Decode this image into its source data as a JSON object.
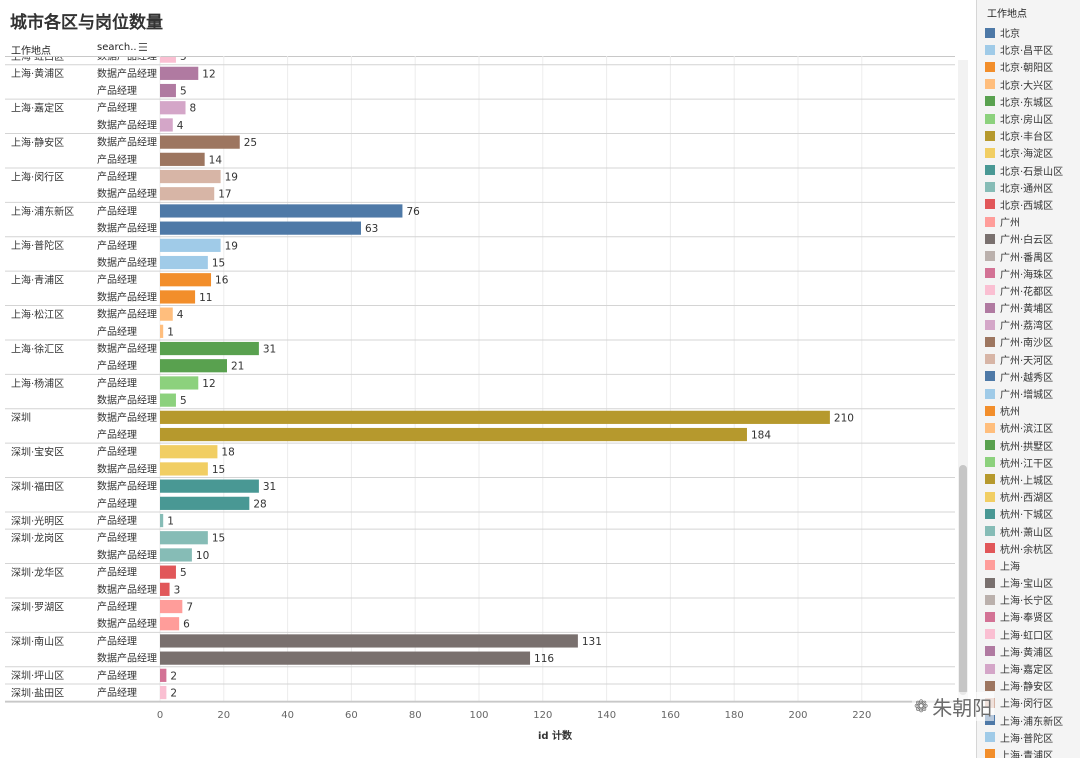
{
  "title": "城市各区与岗位数量",
  "header": {
    "location_label": "工作地点",
    "search_label": "search.."
  },
  "watermark": "朱朝阳",
  "legend": {
    "title": "工作地点",
    "items": [
      {
        "label": "北京",
        "color": "#4e79a7"
      },
      {
        "label": "北京·昌平区",
        "color": "#a0cbe8"
      },
      {
        "label": "北京·朝阳区",
        "color": "#f28e2b"
      },
      {
        "label": "北京·大兴区",
        "color": "#ffbe7d"
      },
      {
        "label": "北京·东城区",
        "color": "#59a14f"
      },
      {
        "label": "北京·房山区",
        "color": "#8cd17d"
      },
      {
        "label": "北京·丰台区",
        "color": "#b6992d"
      },
      {
        "label": "北京·海淀区",
        "color": "#f1ce63"
      },
      {
        "label": "北京·石景山区",
        "color": "#499894"
      },
      {
        "label": "北京·通州区",
        "color": "#86bcb6"
      },
      {
        "label": "北京·西城区",
        "color": "#e15759"
      },
      {
        "label": "广州",
        "color": "#ff9d9a"
      },
      {
        "label": "广州·白云区",
        "color": "#79706e"
      },
      {
        "label": "广州·番禺区",
        "color": "#bab0ac"
      },
      {
        "label": "广州·海珠区",
        "color": "#d37295"
      },
      {
        "label": "广州·花都区",
        "color": "#fabfd2"
      },
      {
        "label": "广州·黄埔区",
        "color": "#b07aa1"
      },
      {
        "label": "广州·荔湾区",
        "color": "#d4a6c8"
      },
      {
        "label": "广州·南沙区",
        "color": "#9d7660"
      },
      {
        "label": "广州·天河区",
        "color": "#d7b5a6"
      },
      {
        "label": "广州·越秀区",
        "color": "#4e79a7"
      },
      {
        "label": "广州·增城区",
        "color": "#a0cbe8"
      },
      {
        "label": "杭州",
        "color": "#f28e2b"
      },
      {
        "label": "杭州·滨江区",
        "color": "#ffbe7d"
      },
      {
        "label": "杭州·拱墅区",
        "color": "#59a14f"
      },
      {
        "label": "杭州·江干区",
        "color": "#8cd17d"
      },
      {
        "label": "杭州·上城区",
        "color": "#b6992d"
      },
      {
        "label": "杭州·西湖区",
        "color": "#f1ce63"
      },
      {
        "label": "杭州·下城区",
        "color": "#499894"
      },
      {
        "label": "杭州·萧山区",
        "color": "#86bcb6"
      },
      {
        "label": "杭州·余杭区",
        "color": "#e15759"
      },
      {
        "label": "上海",
        "color": "#ff9d9a"
      },
      {
        "label": "上海·宝山区",
        "color": "#79706e"
      },
      {
        "label": "上海·长宁区",
        "color": "#bab0ac"
      },
      {
        "label": "上海·奉贤区",
        "color": "#d37295"
      },
      {
        "label": "上海·虹口区",
        "color": "#fabfd2"
      },
      {
        "label": "上海·黄浦区",
        "color": "#b07aa1"
      },
      {
        "label": "上海·嘉定区",
        "color": "#d4a6c8"
      },
      {
        "label": "上海·静安区",
        "color": "#9d7660"
      },
      {
        "label": "上海·闵行区",
        "color": "#d7b5a6"
      },
      {
        "label": "上海·浦东新区",
        "color": "#4e79a7"
      },
      {
        "label": "上海·普陀区",
        "color": "#a0cbe8"
      },
      {
        "label": "上海·青浦区",
        "color": "#f28e2b"
      }
    ]
  },
  "chart_data": {
    "type": "bar",
    "orientation": "horizontal",
    "title": "城市各区与岗位数量",
    "xlabel": "id 计数",
    "xlim": [
      0,
      230
    ],
    "xticks": [
      0,
      20,
      40,
      60,
      80,
      100,
      120,
      140,
      160,
      180,
      200,
      220
    ],
    "groups": [
      {
        "location": "上海·虹口区",
        "color": "#fabfd2",
        "rows": [
          {
            "job": "数据产品经理",
            "value": 5
          }
        ]
      },
      {
        "location": "上海·黄浦区",
        "color": "#b07aa1",
        "rows": [
          {
            "job": "数据产品经理",
            "value": 12
          },
          {
            "job": "产品经理",
            "value": 5
          }
        ]
      },
      {
        "location": "上海·嘉定区",
        "color": "#d4a6c8",
        "rows": [
          {
            "job": "产品经理",
            "value": 8
          },
          {
            "job": "数据产品经理",
            "value": 4
          }
        ]
      },
      {
        "location": "上海·静安区",
        "color": "#9d7660",
        "rows": [
          {
            "job": "数据产品经理",
            "value": 25
          },
          {
            "job": "产品经理",
            "value": 14
          }
        ]
      },
      {
        "location": "上海·闵行区",
        "color": "#d7b5a6",
        "rows": [
          {
            "job": "产品经理",
            "value": 19
          },
          {
            "job": "数据产品经理",
            "value": 17
          }
        ]
      },
      {
        "location": "上海·浦东新区",
        "color": "#4e79a7",
        "rows": [
          {
            "job": "产品经理",
            "value": 76
          },
          {
            "job": "数据产品经理",
            "value": 63
          }
        ]
      },
      {
        "location": "上海·普陀区",
        "color": "#a0cbe8",
        "rows": [
          {
            "job": "产品经理",
            "value": 19
          },
          {
            "job": "数据产品经理",
            "value": 15
          }
        ]
      },
      {
        "location": "上海·青浦区",
        "color": "#f28e2b",
        "rows": [
          {
            "job": "产品经理",
            "value": 16
          },
          {
            "job": "数据产品经理",
            "value": 11
          }
        ]
      },
      {
        "location": "上海·松江区",
        "color": "#ffbe7d",
        "rows": [
          {
            "job": "数据产品经理",
            "value": 4
          },
          {
            "job": "产品经理",
            "value": 1
          }
        ]
      },
      {
        "location": "上海·徐汇区",
        "color": "#59a14f",
        "rows": [
          {
            "job": "数据产品经理",
            "value": 31
          },
          {
            "job": "产品经理",
            "value": 21
          }
        ]
      },
      {
        "location": "上海·杨浦区",
        "color": "#8cd17d",
        "rows": [
          {
            "job": "产品经理",
            "value": 12
          },
          {
            "job": "数据产品经理",
            "value": 5
          }
        ]
      },
      {
        "location": "深圳",
        "color": "#b6992d",
        "rows": [
          {
            "job": "数据产品经理",
            "value": 210
          },
          {
            "job": "产品经理",
            "value": 184
          }
        ]
      },
      {
        "location": "深圳·宝安区",
        "color": "#f1ce63",
        "rows": [
          {
            "job": "产品经理",
            "value": 18
          },
          {
            "job": "数据产品经理",
            "value": 15
          }
        ]
      },
      {
        "location": "深圳·福田区",
        "color": "#499894",
        "rows": [
          {
            "job": "数据产品经理",
            "value": 31
          },
          {
            "job": "产品经理",
            "value": 28
          }
        ]
      },
      {
        "location": "深圳·光明区",
        "color": "#86bcb6",
        "rows": [
          {
            "job": "产品经理",
            "value": 1
          }
        ]
      },
      {
        "location": "深圳·龙岗区",
        "color": "#86bcb6",
        "rows": [
          {
            "job": "产品经理",
            "value": 15
          },
          {
            "job": "数据产品经理",
            "value": 10
          }
        ]
      },
      {
        "location": "深圳·龙华区",
        "color": "#e15759",
        "rows": [
          {
            "job": "产品经理",
            "value": 5
          },
          {
            "job": "数据产品经理",
            "value": 3
          }
        ]
      },
      {
        "location": "深圳·罗湖区",
        "color": "#ff9d9a",
        "rows": [
          {
            "job": "产品经理",
            "value": 7
          },
          {
            "job": "数据产品经理",
            "value": 6
          }
        ]
      },
      {
        "location": "深圳·南山区",
        "color": "#79706e",
        "rows": [
          {
            "job": "产品经理",
            "value": 131
          },
          {
            "job": "数据产品经理",
            "value": 116
          }
        ]
      },
      {
        "location": "深圳·坪山区",
        "color": "#d37295",
        "rows": [
          {
            "job": "产品经理",
            "value": 2
          }
        ]
      },
      {
        "location": "深圳·盐田区",
        "color": "#fabfd2",
        "rows": [
          {
            "job": "产品经理",
            "value": 2
          }
        ]
      }
    ]
  }
}
